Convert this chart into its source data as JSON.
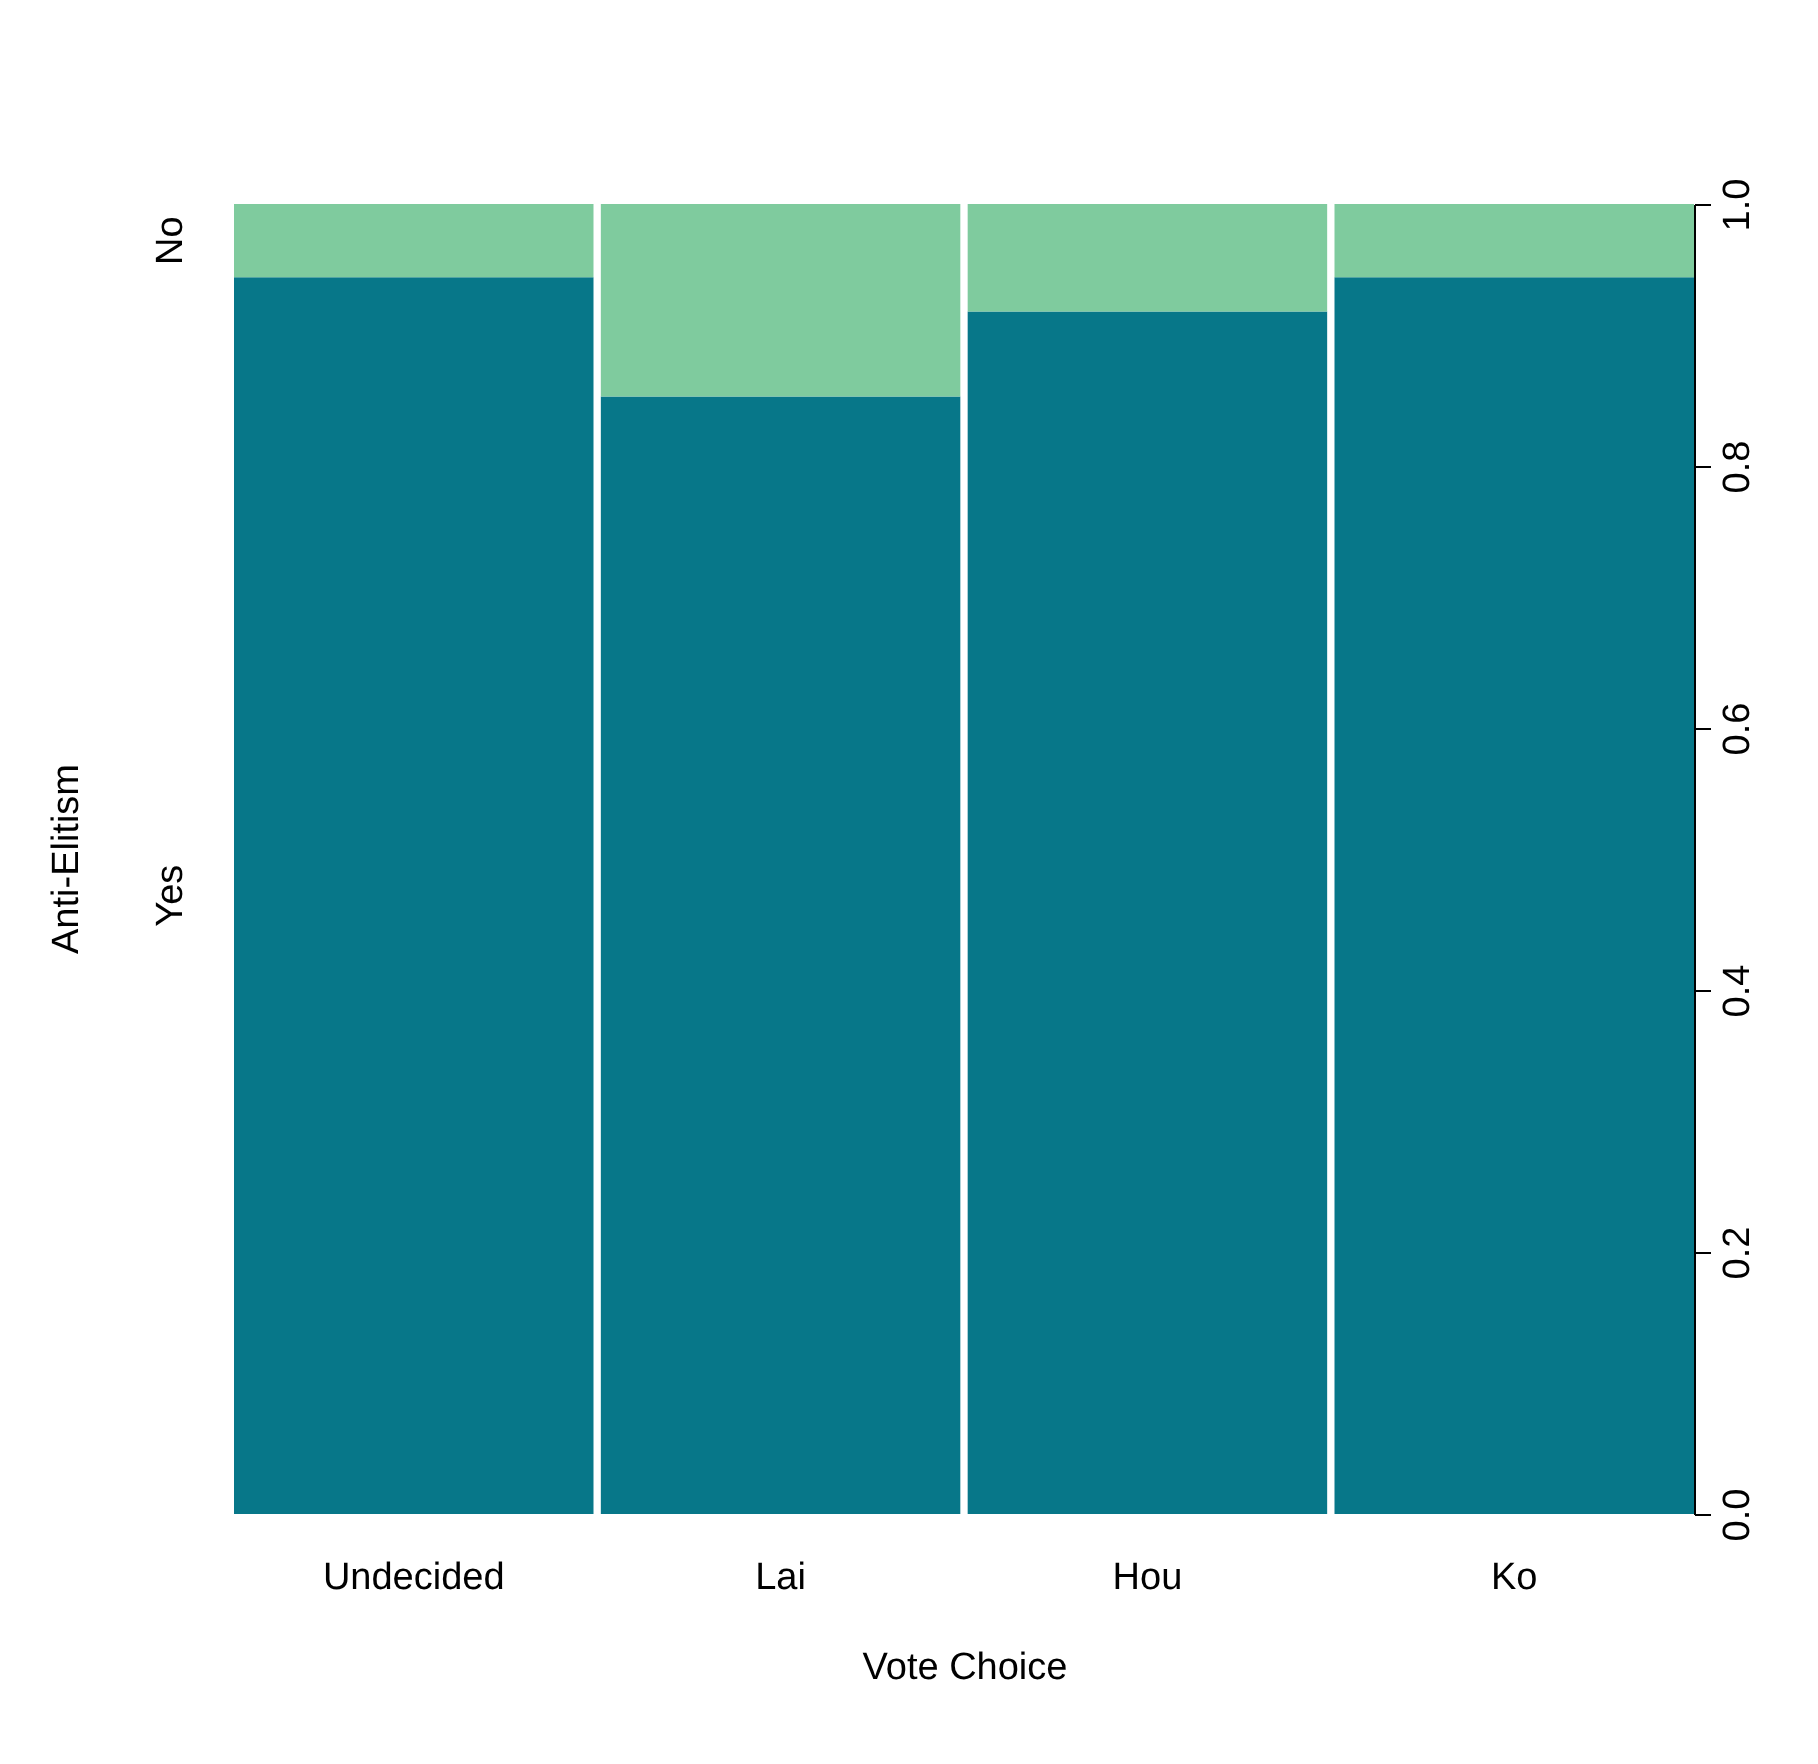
{
  "chart_data": {
    "type": "bar",
    "stacked": true,
    "xlabel": "Vote Choice",
    "ylabel": "Anti-Elitism",
    "categories": [
      "Undecided",
      "Lai",
      "Hou",
      "Ko"
    ],
    "series": [
      {
        "name": "Yes",
        "color": "#077789",
        "values": [
          0.944,
          0.853,
          0.918,
          0.944
        ]
      },
      {
        "name": "No",
        "color": "#7fcb9e",
        "values": [
          0.056,
          0.147,
          0.082,
          0.056
        ]
      }
    ],
    "ylim": [
      0,
      1
    ],
    "yticks": [
      {
        "value": 0,
        "label": "0.0"
      },
      {
        "value": 0.2,
        "label": "0.2"
      },
      {
        "value": 0.4,
        "label": "0.4"
      },
      {
        "value": 0.6,
        "label": "0.6"
      },
      {
        "value": 0.8,
        "label": "0.8"
      },
      {
        "value": 1,
        "label": "1.0"
      }
    ],
    "grid": false,
    "legend": false
  }
}
